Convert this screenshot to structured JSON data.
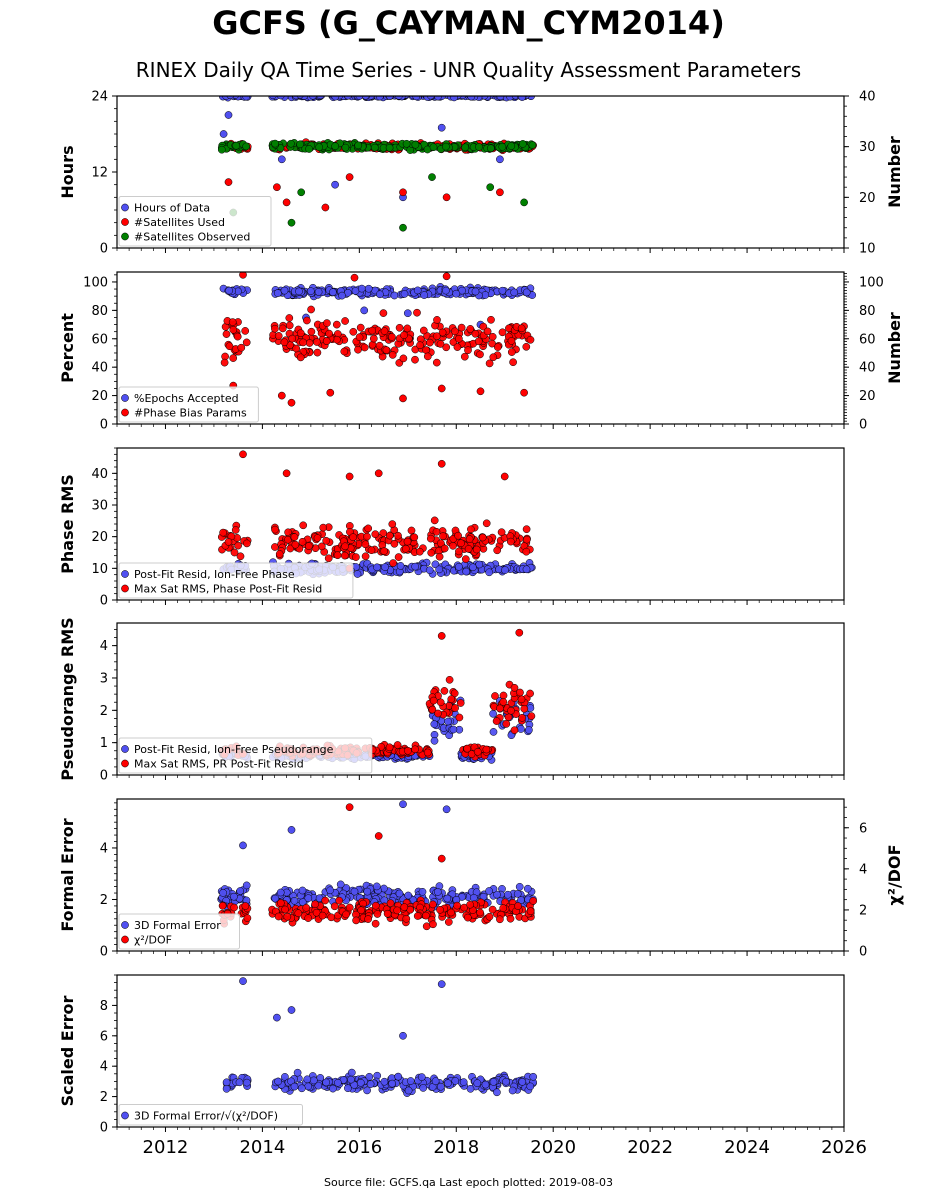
{
  "title": "GCFS (G_CAYMAN_CYM2014)",
  "subtitle": "RINEX Daily QA Time Series - UNR Quality Assessment Parameters",
  "footer": "Source file: GCFS.qa Last epoch plotted: 2019-08-03",
  "colors": {
    "blue": "#5050f0",
    "red": "#ff0000",
    "green": "#008000"
  },
  "chart_data": {
    "type": "scatter",
    "x_axis": {
      "xlim": [
        2011,
        2026
      ],
      "ticks": [
        "2012",
        "2014",
        "2016",
        "2018",
        "2020",
        "2022",
        "2024",
        "2026"
      ]
    },
    "data_span": {
      "start": 2013.15,
      "gap": [
        2013.7,
        2014.2
      ],
      "end": 2019.59
    },
    "panels": [
      {
        "ylabel": "Hours",
        "ylim": [
          0,
          24
        ],
        "yticks": [
          "0",
          "12",
          "24"
        ],
        "y2label": "Number",
        "y2lim": [
          10,
          40
        ],
        "y2ticks": [
          "10",
          "20",
          "30",
          "40"
        ],
        "legend": [
          "Hours of Data",
          "#Satellites Used",
          "#Satellites Observed"
        ],
        "series": [
          {
            "name": "Hours of Data",
            "color": "blue",
            "axis": "left",
            "typical": 24,
            "spread": 0.2,
            "outliers": [
              [
                2013.2,
                18
              ],
              [
                2013.3,
                21
              ],
              [
                2014.4,
                14
              ],
              [
                2015.5,
                10
              ],
              [
                2016.9,
                8
              ],
              [
                2017.7,
                19
              ],
              [
                2018.9,
                14
              ]
            ]
          },
          {
            "name": "#Satellites Used",
            "color": "red",
            "axis": "right",
            "typical": 30,
            "spread": 0.6,
            "outliers": [
              [
                2013.3,
                23
              ],
              [
                2014.3,
                22
              ],
              [
                2014.5,
                19
              ],
              [
                2015.3,
                18
              ],
              [
                2015.8,
                24
              ],
              [
                2016.9,
                21
              ],
              [
                2017.8,
                20
              ],
              [
                2018.9,
                21
              ]
            ]
          },
          {
            "name": "#Satellites Observed",
            "color": "green",
            "axis": "right",
            "typical": 30,
            "spread": 0.6,
            "outliers": [
              [
                2013.4,
                17
              ],
              [
                2014.6,
                15
              ],
              [
                2014.8,
                21
              ],
              [
                2016.9,
                14
              ],
              [
                2017.5,
                24
              ],
              [
                2018.7,
                22
              ],
              [
                2019.4,
                19
              ]
            ]
          }
        ]
      },
      {
        "ylabel": "Percent",
        "ylim": [
          0,
          107
        ],
        "yticks": [
          "0",
          "20",
          "40",
          "60",
          "80",
          "100"
        ],
        "y2label": "Number",
        "y2lim": [
          0,
          107
        ],
        "y2ticks": [
          "0",
          "20",
          "40",
          "60",
          "80",
          "100"
        ],
        "legend": [
          "%Epochs Accepted",
          "#Phase Bias Params"
        ],
        "series": [
          {
            "name": "%Epochs Accepted",
            "color": "blue",
            "axis": "left",
            "typical": 93,
            "spread": 2.5,
            "outliers": [
              [
                2014.9,
                75
              ],
              [
                2016.1,
                80
              ],
              [
                2017.0,
                78
              ],
              [
                2018.5,
                70
              ]
            ]
          },
          {
            "name": "#Phase Bias Params",
            "color": "red",
            "axis": "right",
            "typical": 60,
            "spread": 14,
            "outliers": [
              [
                2013.4,
                27
              ],
              [
                2014.4,
                20
              ],
              [
                2014.6,
                15
              ],
              [
                2015.4,
                22
              ],
              [
                2016.9,
                18
              ],
              [
                2017.7,
                25
              ],
              [
                2018.5,
                23
              ],
              [
                2019.4,
                22
              ],
              [
                2013.6,
                105
              ],
              [
                2015.9,
                103
              ],
              [
                2017.8,
                104
              ]
            ]
          }
        ]
      },
      {
        "ylabel": "Phase RMS",
        "ylim": [
          0,
          48
        ],
        "yticks": [
          "0",
          "10",
          "20",
          "30",
          "40"
        ],
        "legend": [
          "Post-Fit Resid, Ion-Free Phase",
          "Max Sat RMS, Phase Post-Fit Resid"
        ],
        "series": [
          {
            "name": "Post-Fit Resid, Ion-Free Phase",
            "color": "blue",
            "axis": "left",
            "typical": 10,
            "spread": 1.5,
            "outliers": []
          },
          {
            "name": "Max Sat RMS, Phase Post-Fit Resid",
            "color": "red",
            "axis": "left",
            "typical": 18,
            "spread": 5,
            "outliers": [
              [
                2013.6,
                46
              ],
              [
                2014.5,
                40
              ],
              [
                2015.8,
                39
              ],
              [
                2016.4,
                40
              ],
              [
                2017.7,
                43
              ],
              [
                2019.0,
                39
              ]
            ]
          }
        ]
      },
      {
        "ylabel": "Pseudorange RMS",
        "ylim": [
          0,
          4.7
        ],
        "yticks": [
          "0",
          "1",
          "2",
          "3",
          "4"
        ],
        "legend": [
          "Post-Fit Resid, Ion-Free Pseudorange",
          "Max Sat RMS, PR Post-Fit Resid"
        ],
        "series": [
          {
            "name": "Post-Fit Resid, Ion-Free Pseudorange",
            "color": "blue",
            "axis": "left",
            "typical": 0.6,
            "spread": 0.1,
            "outliers": []
          },
          {
            "name": "Max Sat RMS, PR Post-Fit Resid",
            "color": "red",
            "axis": "left",
            "typical": 0.75,
            "spread": 0.15,
            "outliers": [
              [
                2017.7,
                4.3
              ],
              [
                2019.3,
                4.4
              ]
            ]
          }
        ]
      },
      {
        "ylabel": "Formal Error",
        "ylim": [
          0,
          5.9
        ],
        "yticks": [
          "0",
          "2",
          "4"
        ],
        "y2label": "χ²/DOF",
        "y2lim": [
          0,
          7.4
        ],
        "y2ticks": [
          "0",
          "2",
          "4",
          "6"
        ],
        "legend": [
          "3D Formal Error",
          "χ²/DOF"
        ],
        "series": [
          {
            "name": "3D Formal Error",
            "color": "blue",
            "axis": "left",
            "typical": 2.1,
            "spread": 0.35,
            "outliers": [
              [
                2013.6,
                4.1
              ],
              [
                2014.6,
                4.7
              ],
              [
                2016.9,
                5.7
              ],
              [
                2017.8,
                5.5
              ]
            ]
          },
          {
            "name": "χ²/DOF",
            "color": "red",
            "axis": "right",
            "typical": 1.9,
            "spread": 0.5,
            "outliers": [
              [
                2015.8,
                7.0
              ],
              [
                2016.4,
                5.6
              ],
              [
                2017.7,
                4.5
              ]
            ]
          }
        ]
      },
      {
        "ylabel": "Scaled Error",
        "ylim": [
          0,
          10
        ],
        "yticks": [
          "0",
          "2",
          "4",
          "6",
          "8"
        ],
        "legend": [
          "3D Formal Error/√(χ²/DOF)"
        ],
        "series": [
          {
            "name": "3D Formal Error/√(χ²/DOF)",
            "color": "blue",
            "axis": "left",
            "typical": 2.9,
            "spread": 0.5,
            "outliers": [
              [
                2013.6,
                9.6
              ],
              [
                2014.6,
                7.7
              ],
              [
                2014.3,
                7.2
              ],
              [
                2016.9,
                6.0
              ],
              [
                2017.7,
                9.4
              ]
            ]
          }
        ]
      }
    ]
  }
}
